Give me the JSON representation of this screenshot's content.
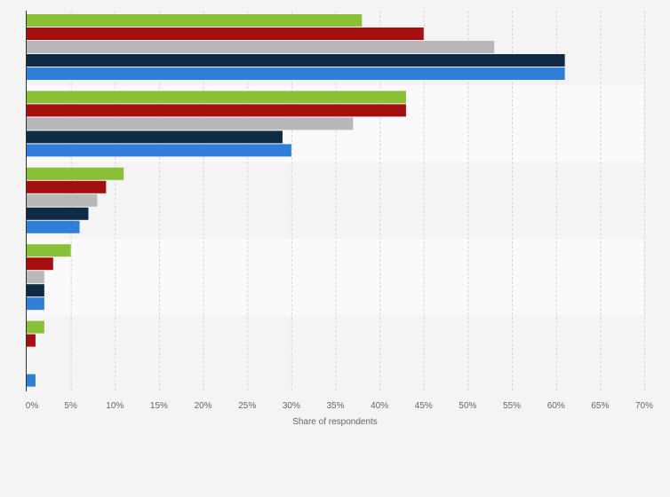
{
  "chart_data": {
    "type": "bar",
    "orientation": "horizontal",
    "title": "",
    "xlabel": "Share of respondents",
    "ylabel": "",
    "xlim": [
      0,
      70
    ],
    "x_ticks": [
      "0%",
      "5%",
      "10%",
      "15%",
      "20%",
      "25%",
      "30%",
      "35%",
      "40%",
      "45%",
      "50%",
      "55%",
      "60%",
      "65%",
      "70%"
    ],
    "grid": true,
    "legend": "none",
    "categories": [
      "",
      "",
      "",
      "",
      ""
    ],
    "series": [
      {
        "color": "#8ac037",
        "values": [
          38,
          43,
          11,
          5,
          2
        ]
      },
      {
        "color": "#a50f0f",
        "values": [
          45,
          43,
          9,
          3,
          1
        ]
      },
      {
        "color": "#b8b8b8",
        "values": [
          53,
          37,
          8,
          2,
          0
        ]
      },
      {
        "color": "#0f2a44",
        "values": [
          61,
          29,
          7,
          2,
          0
        ]
      },
      {
        "color": "#2f7ed8",
        "values": [
          61,
          30,
          6,
          2,
          1
        ]
      }
    ]
  }
}
